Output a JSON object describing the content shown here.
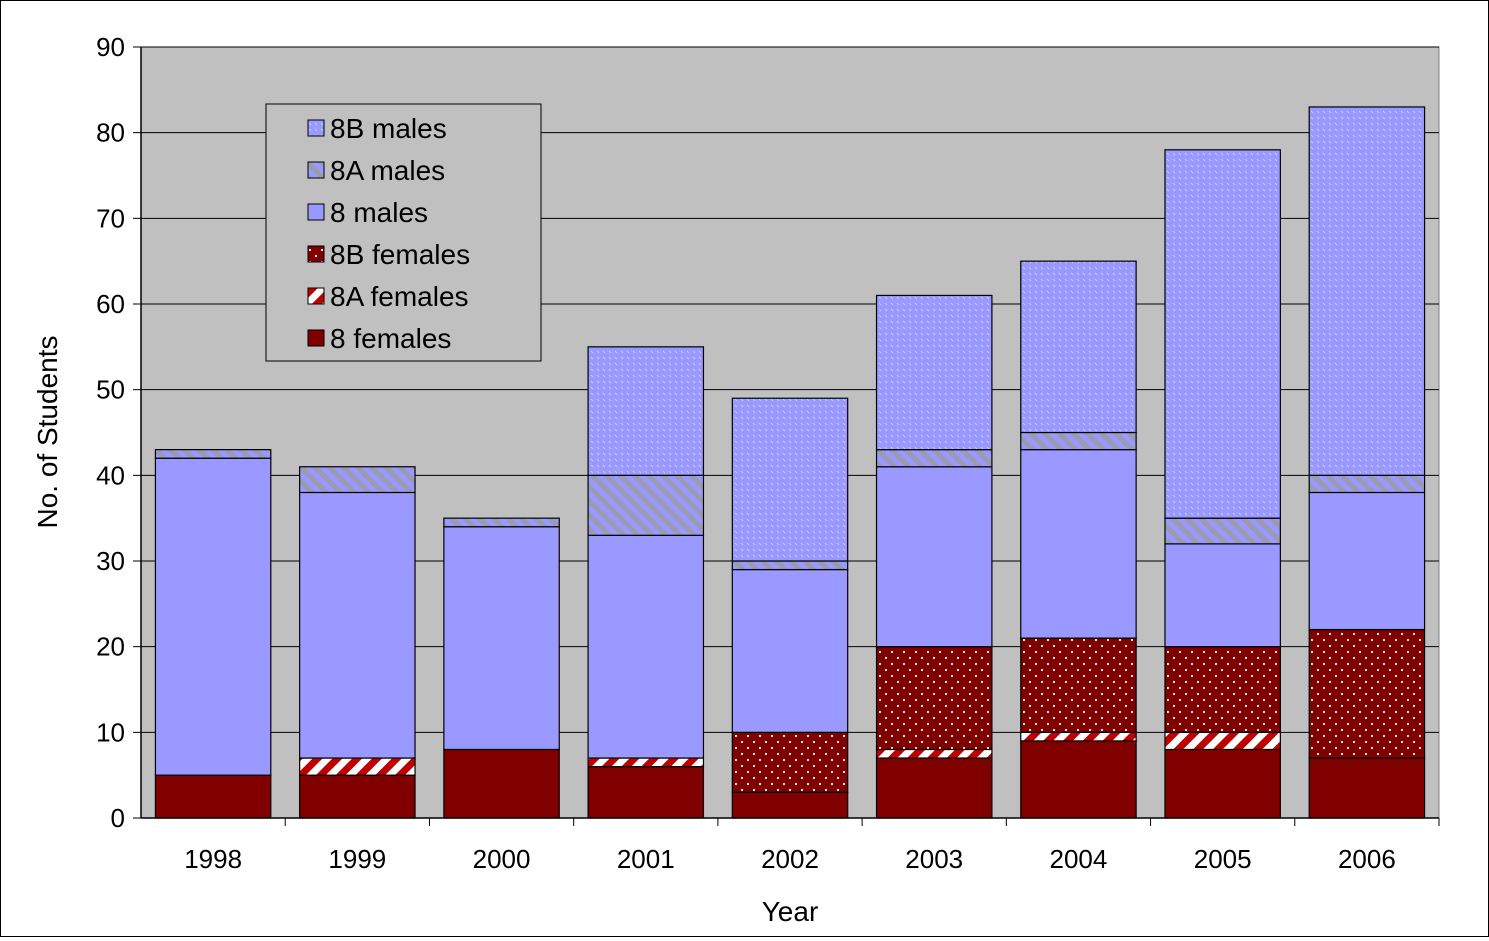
{
  "chart_data": {
    "type": "bar",
    "stacked": true,
    "title": "",
    "xlabel": "Year",
    "ylabel": "No. of Students",
    "ylim": [
      0,
      90
    ],
    "ytick_step": 10,
    "categories": [
      "1998",
      "1999",
      "2000",
      "2001",
      "2002",
      "2003",
      "2004",
      "2005",
      "2006"
    ],
    "legend_placement": "top-left inside plot",
    "grid": "horizontal major gridlines",
    "plot_background": "#c0c0c0",
    "series": [
      {
        "name": "8 females",
        "values": [
          5,
          5,
          8,
          6,
          3,
          7,
          9,
          8,
          7
        ],
        "color": "#800000",
        "pattern": "solid"
      },
      {
        "name": "8A females",
        "values": [
          0,
          2,
          0,
          1,
          0,
          1,
          1,
          2,
          0
        ],
        "color": "#c00000",
        "pattern": "diagonal-stripes-white"
      },
      {
        "name": "8B females",
        "values": [
          0,
          0,
          0,
          0,
          7,
          12,
          11,
          10,
          15
        ],
        "color": "#800000",
        "pattern": "white-dots"
      },
      {
        "name": "8 males",
        "values": [
          37,
          31,
          26,
          26,
          19,
          21,
          22,
          12,
          16
        ],
        "color": "#9999ff",
        "pattern": "solid"
      },
      {
        "name": "8A males",
        "values": [
          1,
          3,
          1,
          7,
          1,
          2,
          2,
          3,
          2
        ],
        "color": "#9999ff",
        "pattern": "grey-diagonal-stripes"
      },
      {
        "name": "8B males",
        "values": [
          0,
          0,
          0,
          15,
          19,
          18,
          20,
          43,
          43
        ],
        "color": "#9999ff",
        "pattern": "light-dots"
      }
    ],
    "legend_order": [
      "8B males",
      "8A males",
      "8 males",
      "8B females",
      "8A females",
      "8 females"
    ]
  }
}
